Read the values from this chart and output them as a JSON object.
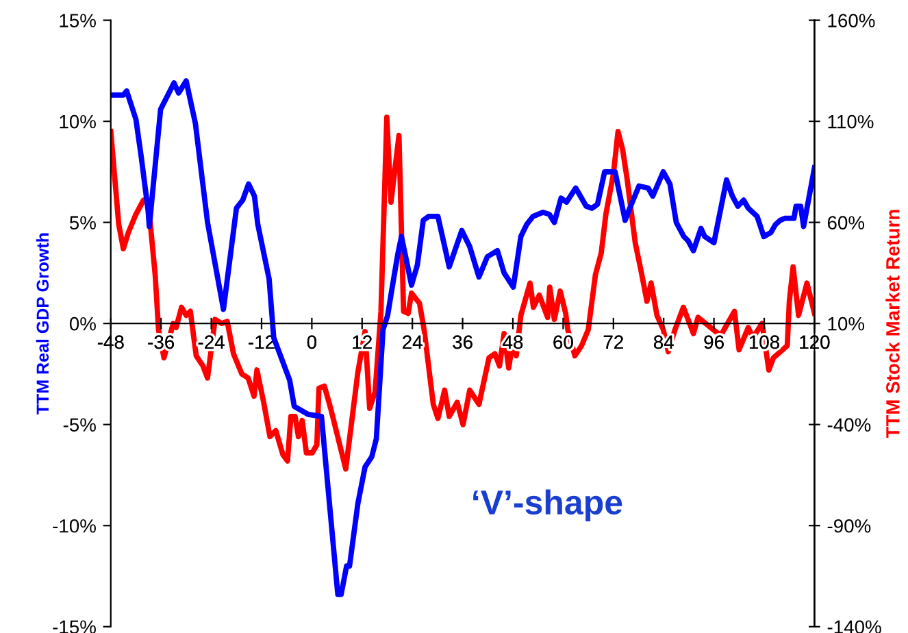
{
  "chart_data": {
    "type": "line",
    "ylabel": "TTM Real GDP Growth",
    "y2label": "TTM Stock Market Return",
    "annotations": [
      "‘V’-shape"
    ],
    "xlim": [
      -48,
      120
    ],
    "xticks": [
      -48,
      -36,
      -24,
      -12,
      0,
      12,
      24,
      36,
      48,
      60,
      72,
      84,
      96,
      108,
      120
    ],
    "ylim": [
      -15,
      15
    ],
    "yticks": [
      {
        "value": -15,
        "label": "-15%"
      },
      {
        "value": -10,
        "label": "-10%"
      },
      {
        "value": -5,
        "label": "-5%"
      },
      {
        "value": 0,
        "label": "0%"
      },
      {
        "value": 5,
        "label": "5%"
      },
      {
        "value": 10,
        "label": "10%"
      },
      {
        "value": 15,
        "label": "15%"
      }
    ],
    "y2lim": [
      -140,
      160
    ],
    "y2ticks": [
      {
        "value": -140,
        "label": "-140%"
      },
      {
        "value": -90,
        "label": "-90%"
      },
      {
        "value": -40,
        "label": "-40%"
      },
      {
        "value": 10,
        "label": "10%"
      },
      {
        "value": 60,
        "label": "60%"
      },
      {
        "value": 110,
        "label": "110%"
      },
      {
        "value": 160,
        "label": "160%"
      }
    ],
    "grid": false,
    "marker": "none",
    "line_style": "solid",
    "series": [
      {
        "color": "#0000ff",
        "x": [
          -48,
          -45,
          -44.2,
          -42,
          -40.7,
          -39.1,
          -38.8,
          -36.1,
          -32.9,
          -31.8,
          -30,
          -27.8,
          -24.9,
          -21.1,
          -18,
          -16.5,
          -15.1,
          -13.7,
          -12.9,
          -10.2,
          -9.1,
          -5.3,
          -4.2,
          -0.9,
          2.3,
          6.2,
          7,
          8.3,
          9,
          11,
          12.7,
          14.3,
          15.4,
          17,
          18.1,
          19.2,
          20.5,
          21.4,
          23.8,
          25.2,
          26.6,
          27.9,
          30.1,
          32.8,
          35.8,
          37.7,
          39.9,
          41.9,
          44.3,
          45.9,
          48.1,
          49.9,
          51.3,
          52.8,
          55.2,
          56.7,
          57.9,
          59.5,
          60.8,
          63,
          65.5,
          66.9,
          68.2,
          69.9,
          72.4,
          74.8,
          75.9,
          78.1,
          80.3,
          81.4,
          83.9,
          85.5,
          87,
          88.8,
          89.8,
          91.1,
          92.9,
          93.8,
          96,
          99,
          100.4,
          101.7,
          103.1,
          104.2,
          106.3,
          107.9,
          109.6,
          110.7,
          111.8,
          112.9,
          115.1,
          115.6,
          116.7,
          117.4,
          120
        ],
        "values": [
          11.3,
          11.3,
          11.5,
          10.1,
          8.2,
          5.6,
          4.8,
          10.6,
          11.9,
          11.4,
          12.0,
          9.9,
          5.0,
          0.7,
          5.7,
          6.1,
          6.9,
          6.3,
          4.9,
          2.2,
          -0.7,
          -2.8,
          -4.1,
          -4.5,
          -4.6,
          -13.4,
          -13.4,
          -12.0,
          -12.0,
          -8.9,
          -7.1,
          -6.6,
          -5.7,
          -0.3,
          0.4,
          1.8,
          3.4,
          4.3,
          1.9,
          2.9,
          5.1,
          5.3,
          5.3,
          2.8,
          4.6,
          3.8,
          2.3,
          3.3,
          3.6,
          2.5,
          1.8,
          4.3,
          4.9,
          5.3,
          5.5,
          5.4,
          5.0,
          6.2,
          6.0,
          6.7,
          5.8,
          5.7,
          5.9,
          7.5,
          7.5,
          5.1,
          5.7,
          6.8,
          6.7,
          6.3,
          7.5,
          6.9,
          5.0,
          4.3,
          4.1,
          3.6,
          4.7,
          4.3,
          4.0,
          7.1,
          6.3,
          5.8,
          6.1,
          5.7,
          5.3,
          4.3,
          4.5,
          4.9,
          5.1,
          5.2,
          5.2,
          5.8,
          5.8,
          4.8,
          7.7
        ]
      },
      {
        "color": "#ff0000",
        "axis": "y2",
        "x": [
          -48,
          -46.1,
          -45,
          -43.8,
          -42,
          -40.2,
          -39.1,
          -37.4,
          -36.6,
          -35.3,
          -33.1,
          -32.4,
          -31.1,
          -30,
          -29,
          -27.6,
          -26,
          -24.9,
          -23.1,
          -21.5,
          -20.2,
          -18.7,
          -16.7,
          -15.2,
          -13.8,
          -13.1,
          -11.5,
          -10,
          -8.6,
          -6.9,
          -5.8,
          -5,
          -4,
          -3.2,
          -2.3,
          -1.3,
          0.1,
          1.2,
          1.7,
          3,
          4.5,
          6.3,
          8.1,
          11,
          12.7,
          13.8,
          15.1,
          16.5,
          17.9,
          18.9,
          20.8,
          21.9,
          23,
          23.8,
          25.7,
          26.8,
          29,
          30.1,
          31.7,
          32.8,
          34.7,
          36.1,
          37.7,
          39.9,
          42.3,
          43.7,
          44.8,
          45.9,
          47,
          48,
          48.8,
          49.9,
          52.1,
          52.9,
          54.3,
          56.3,
          56.8,
          57.9,
          59.3,
          60.6,
          61.1,
          62.8,
          64.4,
          66,
          67.7,
          69.1,
          70.2,
          72,
          73.1,
          74.2,
          75.3,
          77.2,
          78.6,
          80,
          81,
          82.4,
          83.9,
          85.1,
          86.7,
          88.7,
          90,
          91.1,
          92.2,
          97.6,
          100.9,
          102,
          104.2,
          105.3,
          107.5,
          109.1,
          110.2,
          113.5,
          114,
          114.9,
          116.2,
          118.2,
          120
        ],
        "values": [
          105,
          59,
          47,
          55,
          64,
          71,
          71,
          34,
          7,
          -7,
          10,
          8,
          18,
          14,
          16,
          -6,
          -11,
          -17,
          12,
          10,
          11,
          -5,
          -15,
          -17,
          -26,
          -13,
          -29,
          -46,
          -43,
          -55,
          -58,
          -36,
          -36,
          -46,
          -38,
          -54,
          -54,
          -50,
          -22,
          -21,
          -32,
          -47,
          -62,
          -14,
          6,
          -32,
          -24,
          16,
          112,
          70,
          103,
          16,
          15,
          25,
          20,
          7,
          -30,
          -37,
          -23,
          -36,
          -29,
          -40,
          -23,
          -30,
          -7,
          -5,
          -11,
          5,
          -12,
          1,
          -6,
          14,
          30,
          18,
          24,
          13,
          28,
          12,
          26,
          15,
          7,
          -6,
          -1,
          7,
          34,
          45,
          64,
          84,
          105,
          96,
          81,
          50,
          36,
          21,
          30,
          14,
          7,
          -4,
          7,
          18,
          11,
          5,
          13,
          4,
          16,
          -3,
          8,
          3,
          10,
          -13,
          -7,
          -1,
          21,
          38,
          14,
          30,
          15
        ]
      }
    ]
  }
}
